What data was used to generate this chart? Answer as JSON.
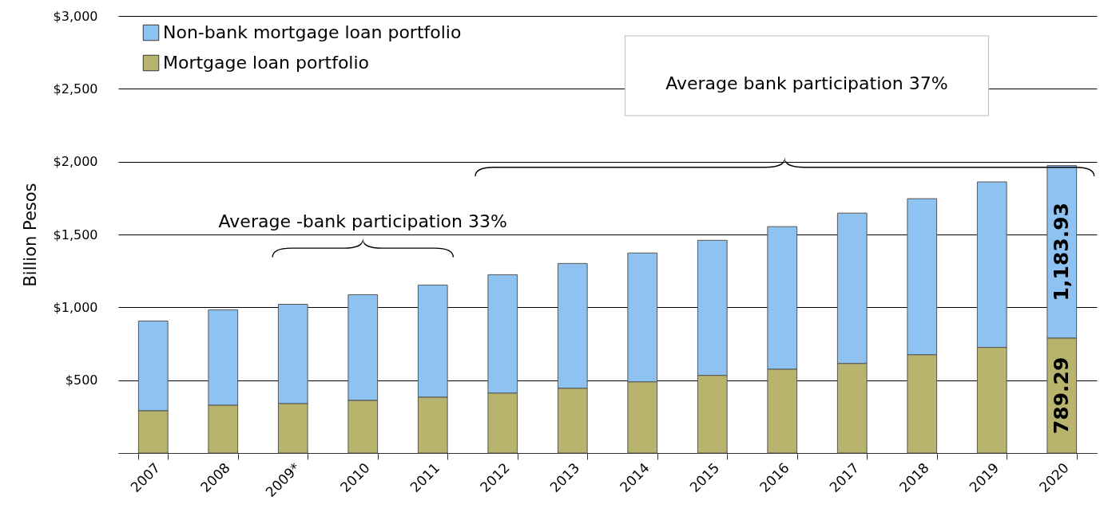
{
  "chart_data": {
    "type": "bar",
    "stacked": true,
    "ylabel": "Billion  Pesos",
    "categories": [
      "2007",
      "2008",
      "2009*",
      "2010",
      "2011",
      "2012",
      "2013",
      "2014",
      "2015",
      "2016",
      "2017",
      "2018",
      "2019",
      "2020"
    ],
    "series": [
      {
        "name": "Mortgage loan portfolio",
        "color": "#b8b46e",
        "values": [
          291,
          329,
          340,
          362,
          384,
          412,
          445,
          489,
          533,
          576,
          615,
          675,
          725,
          789.29
        ],
        "value_labels": [
          null,
          null,
          null,
          null,
          null,
          null,
          null,
          null,
          null,
          null,
          null,
          null,
          null,
          "789.29"
        ]
      },
      {
        "name": "Non-bank mortgage loan portfolio",
        "color": "#8ec2f0",
        "values": [
          615,
          654,
          681,
          725,
          769,
          812,
          856,
          884,
          927,
          978,
          1032,
          1071,
          1136,
          1183.93
        ],
        "value_labels": [
          null,
          null,
          null,
          null,
          null,
          null,
          null,
          null,
          null,
          null,
          null,
          null,
          null,
          "1,183.93"
        ]
      }
    ],
    "ylim": [
      0,
      3000
    ],
    "yticks": [
      {
        "value": 0,
        "label": null
      },
      {
        "value": 500,
        "label": "$500"
      },
      {
        "value": 1000,
        "label": "$1,000"
      },
      {
        "value": 1500,
        "label": "$1,500"
      },
      {
        "value": 2000,
        "label": "$2,000"
      },
      {
        "value": 2500,
        "label": "$2,500"
      },
      {
        "value": 3000,
        "label": "$3,000"
      }
    ],
    "grid": "y",
    "legend": "top left",
    "annotations": [
      "Average -bank participation 33%",
      "Average bank participation 37%"
    ]
  }
}
